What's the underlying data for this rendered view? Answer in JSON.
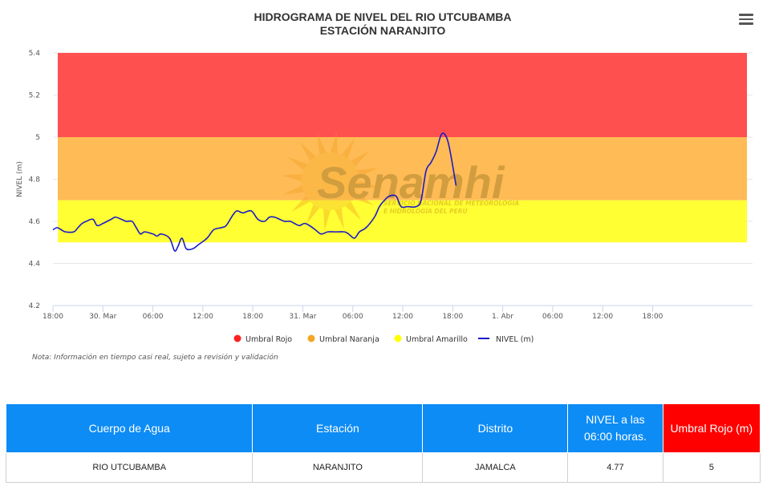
{
  "chart_data": {
    "type": "line",
    "title": "HIDROGRAMA DE NIVEL DEL RIO UTCUBAMBA",
    "subtitle": "ESTACIÓN NARANJITO",
    "ylabel": "NIVEL (m)",
    "xlabel": "",
    "ylim": [
      4.2,
      5.4
    ],
    "y_ticks": [
      "4.2",
      "4.4",
      "4.6",
      "4.8",
      "5",
      "5.2",
      "5.4"
    ],
    "x_unit": "hours from 29 Mar 18:00",
    "x_range": [
      0,
      84
    ],
    "x_ticks": [
      {
        "x": 0,
        "label": "18:00"
      },
      {
        "x": 6,
        "label": "30. Mar"
      },
      {
        "x": 12,
        "label": "06:00"
      },
      {
        "x": 18,
        "label": "12:00"
      },
      {
        "x": 24,
        "label": "18:00"
      },
      {
        "x": 30,
        "label": "31. Mar"
      },
      {
        "x": 36,
        "label": "06:00"
      },
      {
        "x": 42,
        "label": "12:00"
      },
      {
        "x": 48,
        "label": "18:00"
      },
      {
        "x": 54,
        "label": "1. Abr"
      },
      {
        "x": 60,
        "label": "06:00"
      },
      {
        "x": 66,
        "label": "12:00"
      },
      {
        "x": 72,
        "label": "18:00"
      }
    ],
    "bands": [
      {
        "name": "Umbral Rojo",
        "from": 5.0,
        "to": 5.4,
        "color": "#ff5050"
      },
      {
        "name": "Umbral Naranja",
        "from": 4.7,
        "to": 5.0,
        "color": "#ffbb55"
      },
      {
        "name": "Umbral Amarillo",
        "from": 4.5,
        "to": 4.7,
        "color": "#ffff33"
      }
    ],
    "series": [
      {
        "name": "NIVEL (m)",
        "color": "#1a1ac8",
        "points": [
          [
            0,
            4.56
          ],
          [
            0.5,
            4.57
          ],
          [
            1,
            4.56
          ],
          [
            1.5,
            4.55
          ],
          [
            2.5,
            4.55
          ],
          [
            3,
            4.57
          ],
          [
            3.5,
            4.59
          ],
          [
            4,
            4.6
          ],
          [
            4.8,
            4.61
          ],
          [
            5.3,
            4.58
          ],
          [
            6,
            4.59
          ],
          [
            6.5,
            4.6
          ],
          [
            7,
            4.61
          ],
          [
            7.5,
            4.62
          ],
          [
            8.2,
            4.61
          ],
          [
            8.8,
            4.6
          ],
          [
            9.5,
            4.6
          ],
          [
            10,
            4.57
          ],
          [
            10.5,
            4.54
          ],
          [
            11,
            4.55
          ],
          [
            12,
            4.54
          ],
          [
            12.5,
            4.53
          ],
          [
            13,
            4.54
          ],
          [
            14,
            4.52
          ],
          [
            14.6,
            4.46
          ],
          [
            15,
            4.48
          ],
          [
            15.5,
            4.52
          ],
          [
            16,
            4.47
          ],
          [
            16.8,
            4.47
          ],
          [
            17.5,
            4.49
          ],
          [
            18.5,
            4.52
          ],
          [
            19.3,
            4.56
          ],
          [
            20.2,
            4.57
          ],
          [
            20.8,
            4.58
          ],
          [
            21.6,
            4.63
          ],
          [
            22.1,
            4.65
          ],
          [
            22.8,
            4.64
          ],
          [
            23.8,
            4.65
          ],
          [
            24.6,
            4.61
          ],
          [
            25.4,
            4.6
          ],
          [
            26,
            4.62
          ],
          [
            26.6,
            4.62
          ],
          [
            27.2,
            4.61
          ],
          [
            27.8,
            4.6
          ],
          [
            28.5,
            4.6
          ],
          [
            29,
            4.59
          ],
          [
            29.6,
            4.58
          ],
          [
            30.2,
            4.59
          ],
          [
            30.8,
            4.58
          ],
          [
            31.5,
            4.56
          ],
          [
            32.2,
            4.54
          ],
          [
            33,
            4.55
          ],
          [
            34,
            4.55
          ],
          [
            35,
            4.55
          ],
          [
            35.5,
            4.54
          ],
          [
            36.2,
            4.52
          ],
          [
            36.8,
            4.55
          ],
          [
            37.6,
            4.57
          ],
          [
            38.6,
            4.62
          ],
          [
            39.2,
            4.67
          ],
          [
            39.8,
            4.7
          ],
          [
            40.4,
            4.72
          ],
          [
            41.2,
            4.72
          ],
          [
            41.8,
            4.67
          ],
          [
            42.6,
            4.67
          ],
          [
            43.6,
            4.67
          ],
          [
            44.2,
            4.7
          ],
          [
            44.8,
            4.84
          ],
          [
            45.4,
            4.88
          ],
          [
            46,
            4.93
          ],
          [
            46.6,
            5.01
          ],
          [
            47.1,
            5.01
          ],
          [
            47.6,
            4.95
          ],
          [
            48.4,
            4.77
          ]
        ]
      }
    ],
    "watermark": {
      "logo_text": "Senamhi",
      "line1": "SERVICIO NACIONAL DE METEOROLOGÍA",
      "line2": "E HIDROLOGÍA DEL PERÚ"
    }
  },
  "note": "Nota: Información en tiempo casi real, sujeto a revisión y validación",
  "table": {
    "headers": [
      "Cuerpo de Agua",
      "Estación",
      "Distrito",
      "NIVEL a las 06:00 horas.",
      "Umbral Rojo (m)"
    ],
    "row": [
      "RIO UTCUBAMBA",
      "NARANJITO",
      "JAMALCA",
      "4.77",
      "5"
    ]
  },
  "menu_icon": "hamburger-menu-icon"
}
